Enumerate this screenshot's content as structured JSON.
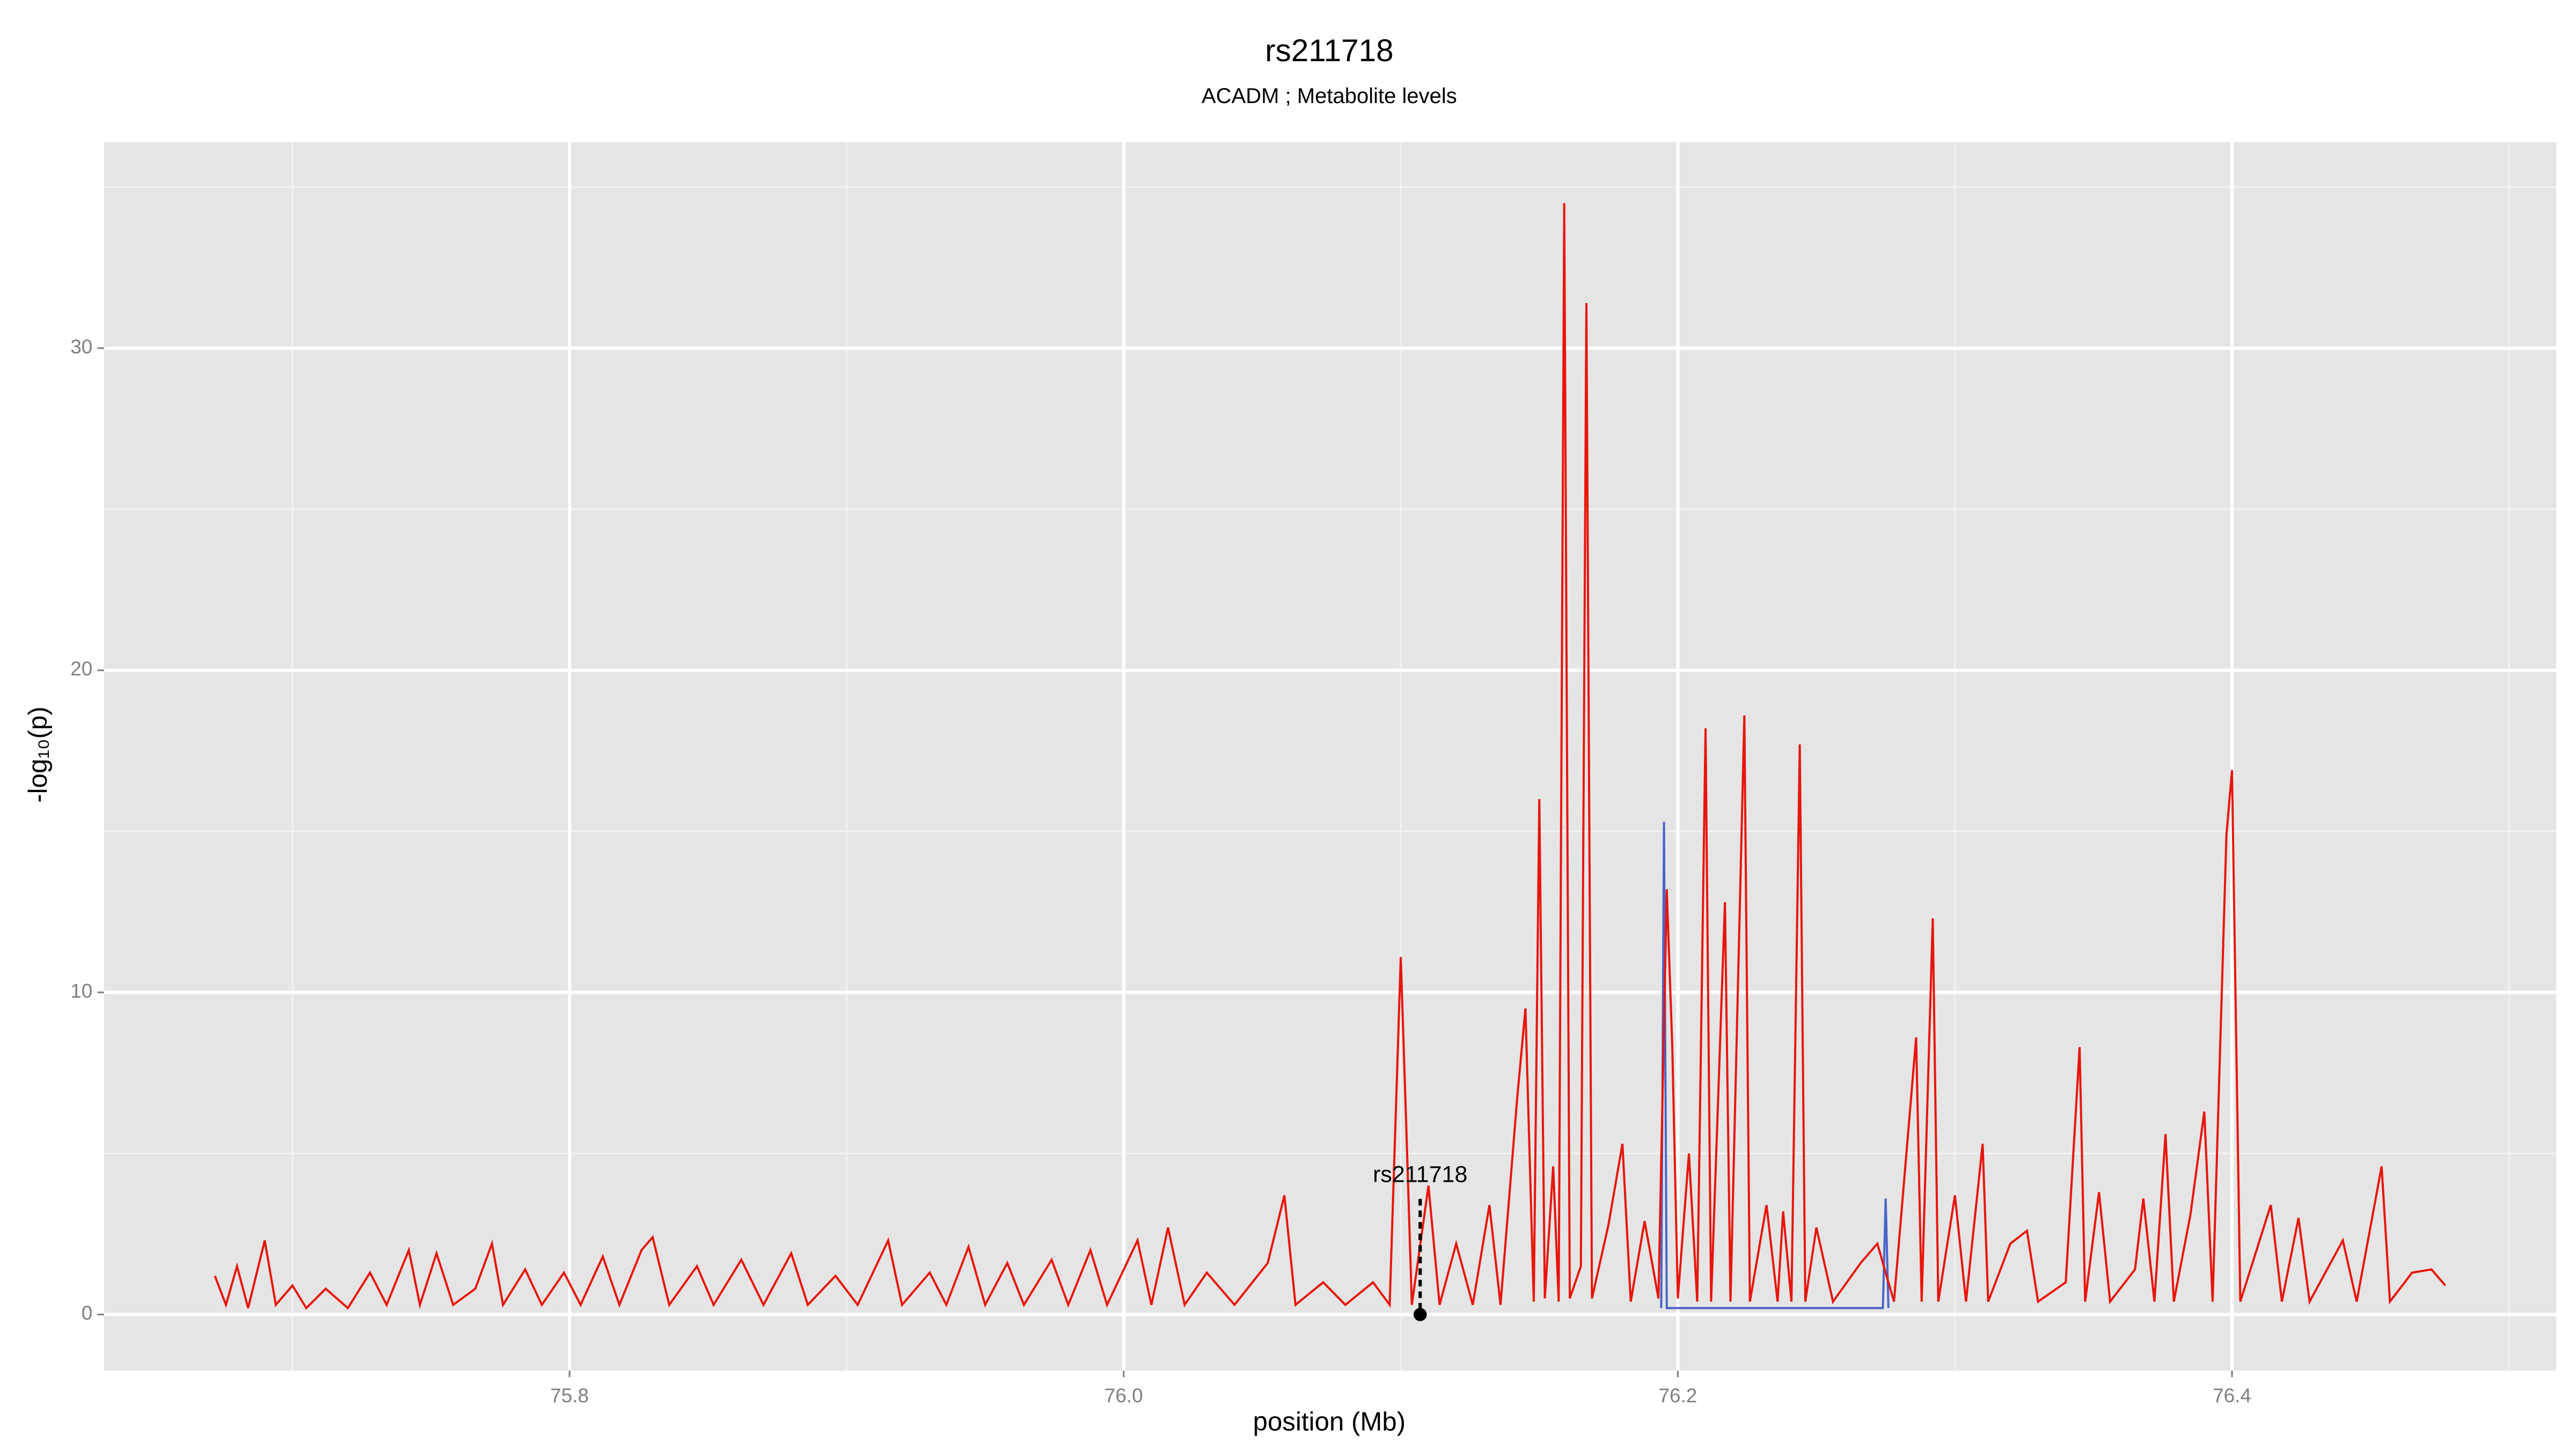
{
  "chart_data": {
    "type": "line",
    "title": "rs211718",
    "subtitle": "ACADM ; Metabolite levels",
    "x_label": "position (Mb)",
    "y_label": "-log₁₀(p)",
    "xlim": [
      75.632,
      76.517
    ],
    "ylim": [
      -1.74,
      36.4
    ],
    "xticks": [
      75.8,
      {
        "value": 76,
        "label": "76.0"
      },
      76.2,
      76.4
    ],
    "yticks": [
      0,
      10,
      20,
      30
    ],
    "x_minor_ticks": [
      75.7,
      75.9,
      76.1,
      76.3,
      76.5
    ],
    "y_minor_ticks": [
      5,
      15,
      25,
      35
    ],
    "grid": true,
    "annotation": {
      "text": "rs211718",
      "x": 76.107,
      "y": 0
    },
    "series": [
      {
        "color": "#4a64c8",
        "x": [
          76.194,
          76.195,
          76.196,
          76.274,
          76.275,
          76.276
        ],
        "values": [
          0.2,
          15.3,
          0.2,
          0.2,
          3.6,
          0.2
        ]
      },
      {
        "color": "#e8150c",
        "x": [
          75.672,
          75.676,
          75.68,
          75.684,
          75.69,
          75.694,
          75.7,
          75.705,
          75.712,
          75.72,
          75.728,
          75.734,
          75.742,
          75.746,
          75.752,
          75.758,
          75.766,
          75.772,
          75.776,
          75.784,
          75.79,
          75.798,
          75.804,
          75.812,
          75.818,
          75.826,
          75.83,
          75.836,
          75.846,
          75.852,
          75.862,
          75.87,
          75.88,
          75.886,
          75.896,
          75.904,
          75.915,
          75.92,
          75.93,
          75.936,
          75.944,
          75.95,
          75.958,
          75.964,
          75.974,
          75.98,
          75.988,
          75.994,
          76.005,
          76.01,
          76.016,
          76.022,
          76.03,
          76.04,
          76.052,
          76.058,
          76.062,
          76.072,
          76.08,
          76.09,
          76.096,
          76.1,
          76.102,
          76.104,
          76.11,
          76.114,
          76.12,
          76.126,
          76.132,
          76.136,
          76.142,
          76.145,
          76.148,
          76.15,
          76.152,
          76.155,
          76.157,
          76.159,
          76.161,
          76.165,
          76.167,
          76.169,
          76.175,
          76.18,
          76.183,
          76.188,
          76.193,
          76.196,
          76.198,
          76.2,
          76.204,
          76.207,
          76.21,
          76.212,
          76.217,
          76.219,
          76.224,
          76.226,
          76.232,
          76.236,
          76.238,
          76.241,
          76.244,
          76.246,
          76.25,
          76.256,
          76.266,
          76.272,
          76.278,
          76.286,
          76.288,
          76.292,
          76.294,
          76.3,
          76.304,
          76.31,
          76.312,
          76.32,
          76.326,
          76.33,
          76.34,
          76.345,
          76.347,
          76.352,
          76.356,
          76.365,
          76.368,
          76.372,
          76.376,
          76.379,
          76.385,
          76.39,
          76.393,
          76.398,
          76.4,
          76.403,
          76.414,
          76.418,
          76.424,
          76.428,
          76.44,
          76.445,
          76.454,
          76.457,
          76.465,
          76.472,
          76.477
        ],
        "values": [
          1.2,
          0.3,
          1.5,
          0.2,
          2.3,
          0.3,
          0.9,
          0.2,
          0.8,
          0.2,
          1.3,
          0.3,
          2.0,
          0.3,
          1.9,
          0.3,
          0.8,
          2.2,
          0.3,
          1.4,
          0.3,
          1.3,
          0.3,
          1.8,
          0.3,
          2.0,
          2.4,
          0.3,
          1.5,
          0.3,
          1.7,
          0.3,
          1.9,
          0.3,
          1.2,
          0.3,
          2.3,
          0.3,
          1.3,
          0.3,
          2.1,
          0.3,
          1.6,
          0.3,
          1.7,
          0.3,
          2.0,
          0.3,
          2.3,
          0.3,
          2.7,
          0.3,
          1.3,
          0.3,
          1.6,
          3.7,
          0.3,
          1.0,
          0.3,
          1.0,
          0.3,
          11.1,
          5.8,
          0.3,
          4.0,
          0.3,
          2.2,
          0.3,
          3.4,
          0.3,
          6.7,
          9.5,
          0.4,
          16.0,
          0.5,
          4.6,
          0.4,
          34.5,
          0.5,
          1.5,
          31.4,
          0.5,
          2.8,
          5.3,
          0.4,
          2.9,
          0.5,
          13.2,
          8.3,
          0.5,
          5.0,
          0.4,
          18.2,
          0.4,
          12.8,
          0.4,
          18.6,
          0.4,
          3.4,
          0.4,
          3.2,
          0.4,
          17.7,
          0.4,
          2.7,
          0.4,
          1.6,
          2.2,
          0.4,
          8.6,
          0.4,
          12.3,
          0.4,
          3.7,
          0.4,
          5.3,
          0.4,
          2.2,
          2.6,
          0.4,
          1.0,
          8.3,
          0.4,
          3.8,
          0.4,
          1.4,
          3.6,
          0.4,
          5.6,
          0.4,
          3.1,
          6.3,
          0.4,
          14.9,
          16.9,
          0.4,
          3.4,
          0.4,
          3.0,
          0.4,
          2.3,
          0.4,
          4.6,
          0.4,
          1.3,
          1.4,
          0.9
        ]
      }
    ]
  }
}
